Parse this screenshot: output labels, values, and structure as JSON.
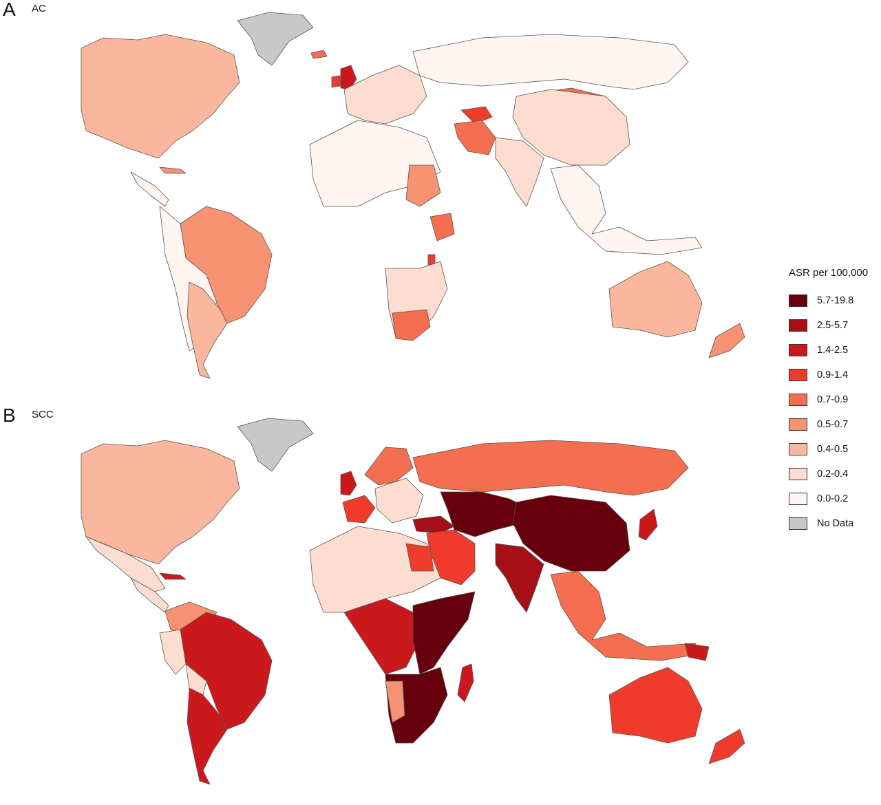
{
  "panels": {
    "a": {
      "letter": "A",
      "title": "AC"
    },
    "b": {
      "letter": "B",
      "title": "SCC"
    }
  },
  "legend": {
    "title": "ASR per 100,000",
    "items": [
      {
        "label": "5.7-19.8",
        "color": "#67000d"
      },
      {
        "label": "2.5-5.7",
        "color": "#a50f15"
      },
      {
        "label": "1.4-2.5",
        "color": "#cb181d"
      },
      {
        "label": "0.9-1.4",
        "color": "#ef3b2c"
      },
      {
        "label": "0.7-0.9",
        "color": "#f56e4f"
      },
      {
        "label": "0.5-0.7",
        "color": "#f79272"
      },
      {
        "label": "0.4-0.5",
        "color": "#fbb79d"
      },
      {
        "label": "0.2-0.4",
        "color": "#fdddd0"
      },
      {
        "label": "0.0-0.2",
        "color": "#fff5f0"
      },
      {
        "label": "No Data",
        "color": "#c8c8c8"
      }
    ]
  },
  "map_data": {
    "AC": {
      "North America": "0.4-0.5",
      "Greenland": "No Data",
      "Central America": "0.0-0.2",
      "Caribbean": "0.5-0.7",
      "Brazil": "0.5-0.7",
      "South America (other)": "0.0-0.2",
      "Argentina": "0.4-0.5",
      "United Kingdom": "1.4-2.5",
      "Ireland": "0.9-1.4",
      "Iceland": "0.7-0.9",
      "Europe": "0.2-0.4",
      "Russia": "0.0-0.2",
      "Mongolia": "0.7-0.9",
      "China": "0.2-0.4",
      "Turkmenistan": "0.9-1.4",
      "Iran": "0.7-0.9",
      "India": "0.2-0.4",
      "North Africa": "0.0-0.2",
      "Sudan": "0.5-0.7",
      "Kenya": "0.7-0.9",
      "Malawi": "0.9-1.4",
      "Southern Africa": "0.2-0.4",
      "South Africa": "0.7-0.9",
      "Southeast Asia": "0.0-0.2",
      "Australia": "0.4-0.5",
      "New Zealand": "0.5-0.7"
    },
    "SCC": {
      "North America": "0.4-0.5",
      "Greenland": "No Data",
      "Mexico": "0.2-0.4",
      "Central America": "0.2-0.4",
      "Caribbean": "1.4-2.5",
      "Colombia/Venezuela": "0.5-0.7",
      "Brazil": "1.4-2.5",
      "Peru": "0.2-0.4",
      "Bolivia": "0.2-0.4",
      "Argentina": "1.4-2.5",
      "United Kingdom": "1.4-2.5",
      "France": "0.9-1.4",
      "Europe (east)": "0.2-0.4",
      "Scandinavia": "0.7-0.9",
      "Russia": "0.7-0.9",
      "Central Asia": "5.7-19.8",
      "China": "5.7-19.8",
      "India": "2.5-5.7",
      "Turkey": "2.5-5.7",
      "Middle East": "0.9-1.4",
      "Japan": "1.4-2.5",
      "North Africa": "0.2-0.4",
      "Egypt": "0.9-1.4",
      "Central Africa": "1.4-2.5",
      "East Africa": "5.7-19.8",
      "Southern Africa": "5.7-19.8",
      "Namibia": "0.5-0.7",
      "Madagascar": "1.4-2.5",
      "Southeast Asia": "0.7-0.9",
      "Papua New Guinea": "1.4-2.5",
      "Australia": "0.9-1.4",
      "New Zealand": "0.9-1.4"
    }
  }
}
